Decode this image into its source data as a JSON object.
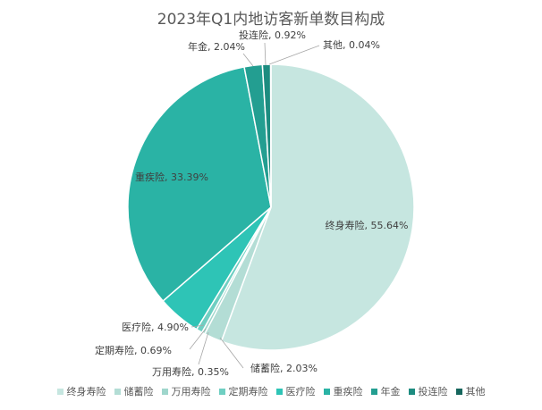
{
  "chart_data": {
    "type": "pie",
    "title": "2023年Q1内地访客新单数目构成",
    "categories": [
      "终身寿险",
      "储蓄险",
      "万用寿险",
      "定期寿险",
      "医疗险",
      "重疾险",
      "年金",
      "投连险",
      "其他"
    ],
    "values": [
      55.64,
      2.03,
      0.35,
      0.69,
      4.9,
      33.39,
      2.04,
      0.92,
      0.04
    ],
    "data_labels": [
      "终身寿险, 55.64%",
      "储蓄险, 2.03%",
      "万用寿险, 0.35%",
      "定期寿险, 0.69%",
      "医疗险, 4.90%",
      "重疾险, 33.39%",
      "年金, 2.04%",
      "投连险, 0.92%",
      "其他, 0.04%"
    ],
    "colors": [
      "#c6e6e0",
      "#b3ddd5",
      "#9fd6cc",
      "#6fcfc2",
      "#2ec4b6",
      "#2ab3a5",
      "#239e91",
      "#1d8c80",
      "#16665d"
    ],
    "legend_position": "bottom",
    "start_angle": "12 o'clock",
    "direction": "clockwise"
  }
}
